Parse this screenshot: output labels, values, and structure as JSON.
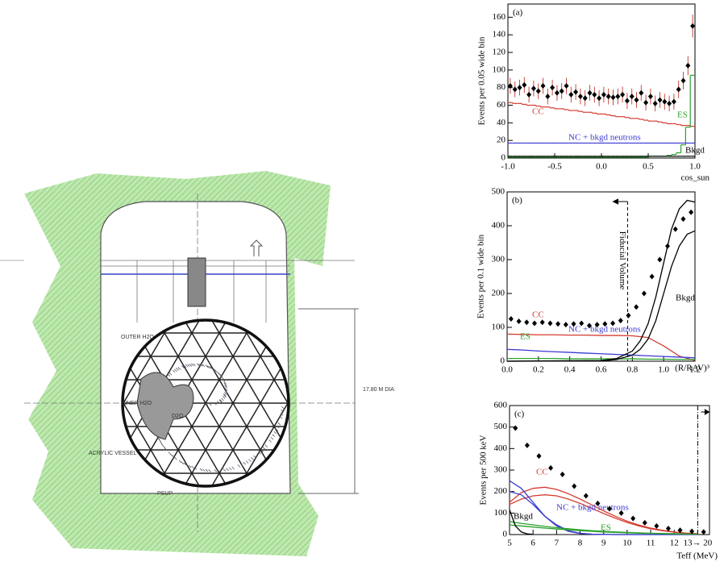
{
  "diagram": {
    "labels": [
      "OUTER H2O",
      "INNER H2O",
      "D2O",
      "ACRYLIC VESSEL",
      "PSUP",
      "17.80 M DIA"
    ]
  },
  "chart_data": [
    {
      "type": "histogram",
      "title": "(a)",
      "y_label": "Events per 0.05 wide bin",
      "x_label": "cos_sun",
      "bins": [
        -1,
        -0.95,
        -0.9,
        -0.85,
        -0.8,
        -0.75,
        -0.7,
        -0.65,
        -0.6,
        -0.55,
        -0.5,
        -0.45,
        -0.4,
        -0.35,
        -0.3,
        -0.25,
        -0.2,
        -0.15,
        -0.1,
        -0.05,
        0,
        0.05,
        0.1,
        0.15,
        0.2,
        0.25,
        0.3,
        0.35,
        0.4,
        0.45,
        0.5,
        0.55,
        0.6,
        0.65,
        0.7,
        0.75,
        0.8,
        0.85,
        0.9,
        0.95,
        1
      ],
      "points": {
        "color": "#000000",
        "error_color": "#c0392b",
        "values": [
          82,
          78,
          80,
          83,
          72,
          79,
          76,
          82,
          70,
          80,
          74,
          76,
          82,
          72,
          75,
          70,
          68,
          74,
          72,
          68,
          72,
          70,
          69,
          70,
          72,
          65,
          70,
          66,
          74,
          63,
          70,
          62,
          66,
          64,
          62,
          64,
          78,
          88,
          105,
          150
        ],
        "errors": [
          9,
          9,
          9,
          9,
          9,
          9,
          9,
          9,
          9,
          9,
          9,
          9,
          9,
          9,
          9,
          9,
          9,
          9,
          9,
          9,
          9,
          9,
          9,
          9,
          9,
          9,
          9,
          9,
          9,
          9,
          9,
          9,
          9,
          9,
          9,
          9,
          10,
          10,
          11,
          13
        ]
      },
      "series": [
        {
          "name": "CC",
          "color": "#d63c2f",
          "values": [
            63,
            62,
            62,
            61,
            60,
            60,
            59,
            58,
            58,
            57,
            56,
            56,
            55,
            54,
            54,
            53,
            52,
            52,
            51,
            50,
            50,
            49,
            48,
            47,
            47,
            46,
            45,
            45,
            44,
            43,
            42,
            42,
            41,
            40,
            39,
            39,
            38,
            37,
            37,
            36
          ]
        },
        {
          "name": "ES",
          "color": "#2ca02c",
          "values": [
            1,
            1,
            1,
            1,
            1,
            1,
            1,
            1,
            1,
            1,
            1,
            1,
            1,
            1,
            1,
            1,
            1,
            1,
            1,
            1,
            1,
            1,
            1,
            1,
            1,
            1,
            1,
            1,
            1,
            1,
            2,
            2,
            2,
            2,
            3,
            4,
            6,
            15,
            35,
            94
          ]
        },
        {
          "name": "NC + bkgd neutrons",
          "color": "#3b3bd1",
          "values": [
            17,
            17,
            17,
            17,
            17,
            17,
            17,
            17,
            17,
            17,
            17,
            17,
            17,
            17,
            17,
            17,
            17,
            17,
            17,
            17,
            17,
            17,
            17,
            17,
            17,
            17,
            17,
            17,
            17,
            17,
            17,
            17,
            17,
            17,
            17,
            17,
            17,
            17,
            17,
            17
          ]
        },
        {
          "name": "Bkgd",
          "color": "#000000",
          "values": [
            2,
            2,
            2,
            2,
            2,
            2,
            2,
            2,
            2,
            2,
            2,
            2,
            2,
            2,
            2,
            2,
            2,
            2,
            2,
            2,
            2,
            2,
            2,
            2,
            2,
            2,
            2,
            2,
            2,
            2,
            2,
            2,
            2,
            2,
            2,
            2,
            2,
            2,
            2,
            2
          ]
        }
      ],
      "xlim": [
        -1,
        1
      ],
      "xticks": [
        {
          "value": -1,
          "label": "-1.0"
        },
        {
          "value": -0.5,
          "label": "-0.5"
        },
        {
          "value": 0,
          "label": "0.0"
        },
        {
          "value": 0.5,
          "label": "0.5"
        },
        {
          "value": 1,
          "label": "1.0"
        }
      ],
      "ylim": [
        0,
        175
      ],
      "yticks": [
        0,
        20,
        40,
        60,
        80,
        100,
        120,
        140,
        160
      ]
    },
    {
      "type": "line",
      "title": "(b)",
      "y_label": "Events per 0.1 wide bin",
      "x_label": "(R/RAV)³",
      "annotations": [
        {
          "text": "Fiducial Volume",
          "x": 0.77
        }
      ],
      "points": {
        "color": "#000000",
        "x": [
          0.025,
          0.075,
          0.125,
          0.175,
          0.225,
          0.275,
          0.325,
          0.375,
          0.425,
          0.475,
          0.525,
          0.575,
          0.625,
          0.675,
          0.725,
          0.775,
          0.825,
          0.875,
          0.925,
          0.975,
          1.025,
          1.075,
          1.125,
          1.175
        ],
        "values": [
          125,
          118,
          115,
          112,
          115,
          112,
          110,
          108,
          110,
          112,
          105,
          108,
          110,
          112,
          120,
          135,
          160,
          200,
          250,
          300,
          340,
          390,
          420,
          440
        ]
      },
      "x": [
        0,
        0.1,
        0.2,
        0.3,
        0.4,
        0.5,
        0.6,
        0.7,
        0.8,
        0.9,
        1,
        1.1,
        1.2
      ],
      "series": [
        {
          "name": "CC",
          "color": "#d63c2f",
          "values": [
            80,
            79,
            78,
            78,
            77,
            77,
            76,
            76,
            75,
            70,
            45,
            15,
            2
          ]
        },
        {
          "name": "NC + bkgd neutrons",
          "color": "#3b3bd1",
          "values": [
            35,
            33,
            30,
            28,
            26,
            24,
            22,
            20,
            18,
            16,
            14,
            12,
            10
          ]
        },
        {
          "name": "ES",
          "color": "#2ca02c",
          "values": [
            8,
            8,
            8,
            8,
            7,
            7,
            7,
            7,
            7,
            6,
            6,
            5,
            5
          ]
        },
        {
          "name": "Bkgd",
          "color": "#000000",
          "x": [
            0,
            0.6,
            0.7,
            0.8,
            0.85,
            0.9,
            0.95,
            1,
            1.05,
            1.1,
            1.15,
            1.2
          ],
          "values": [
            0,
            2,
            8,
            30,
            60,
            110,
            190,
            290,
            390,
            450,
            475,
            470
          ]
        },
        {
          "color": "#000000",
          "x": [
            0,
            0.6,
            0.7,
            0.8,
            0.85,
            0.9,
            0.95,
            1,
            1.05,
            1.1,
            1.15,
            1.2
          ],
          "values": [
            0,
            1,
            5,
            18,
            35,
            65,
            120,
            200,
            280,
            340,
            375,
            385
          ]
        }
      ],
      "xlim": [
        0,
        1.2
      ],
      "xticks": [
        {
          "value": 0,
          "label": "0.0"
        },
        0.2,
        0.4,
        0.6,
        0.8,
        {
          "value": 1,
          "label": "1.0"
        },
        1.2
      ],
      "ylim": [
        0,
        500
      ],
      "yticks": [
        0,
        100,
        200,
        300,
        400,
        500
      ]
    },
    {
      "type": "line",
      "title": "(c)",
      "y_label": "Events per 500 keV",
      "x_label": "Teff (MeV)",
      "points": {
        "color": "#000000",
        "x": [
          5.25,
          5.75,
          6.25,
          6.75,
          7.25,
          7.75,
          8.25,
          8.75,
          9.25,
          9.75,
          10.25,
          10.75,
          11.25,
          11.75,
          12.25,
          12.75,
          13.25
        ],
        "values": [
          495,
          415,
          365,
          310,
          280,
          225,
          180,
          145,
          120,
          100,
          75,
          55,
          40,
          28,
          20,
          15,
          12
        ]
      },
      "x": [
        5,
        5.5,
        6,
        6.5,
        7,
        7.5,
        8,
        8.5,
        9,
        9.5,
        10,
        10.5,
        11,
        11.5,
        12,
        12.5,
        13
      ],
      "series": [
        {
          "name": "CC",
          "color": "#d63c2f",
          "values": [
            150,
            195,
            215,
            220,
            210,
            190,
            165,
            138,
            110,
            85,
            62,
            44,
            30,
            20,
            12,
            7,
            4
          ]
        },
        {
          "color": "#d63c2f",
          "values": [
            140,
            165,
            180,
            185,
            180,
            165,
            145,
            122,
            98,
            76,
            56,
            40,
            27,
            18,
            11,
            6,
            3
          ]
        },
        {
          "name": "NC + bkgd neutrons",
          "color": "#3b3bd1",
          "values": [
            250,
            215,
            150,
            85,
            40,
            15,
            5,
            2,
            1,
            0,
            0,
            0,
            0,
            0,
            0,
            0,
            0
          ]
        },
        {
          "color": "#3b3bd1",
          "values": [
            200,
            185,
            140,
            85,
            45,
            18,
            6,
            2,
            1,
            0,
            0,
            0,
            0,
            0,
            0,
            0,
            0
          ]
        },
        {
          "name": "ES",
          "color": "#2ca02c",
          "values": [
            60,
            52,
            45,
            38,
            32,
            27,
            22,
            18,
            15,
            12,
            10,
            8,
            6,
            5,
            4,
            3,
            2
          ]
        },
        {
          "color": "#2ca02c",
          "values": [
            45,
            40,
            35,
            30,
            26,
            22,
            18,
            15,
            12,
            10,
            8,
            6,
            5,
            4,
            3,
            2,
            2
          ]
        },
        {
          "name": "Bkgd",
          "color": "#000000",
          "x": [
            5,
            5.25,
            5.5,
            5.75,
            6
          ],
          "values": [
            115,
            40,
            12,
            3,
            1
          ]
        }
      ],
      "xlim": [
        5,
        13.5
      ],
      "xticks": [
        5,
        6,
        7,
        8,
        9,
        10,
        11,
        12,
        {
          "value": 13,
          "label": "13→ 20"
        }
      ],
      "ylim": [
        0,
        600
      ],
      "yticks": [
        0,
        100,
        200,
        300,
        400,
        500,
        600
      ]
    }
  ]
}
